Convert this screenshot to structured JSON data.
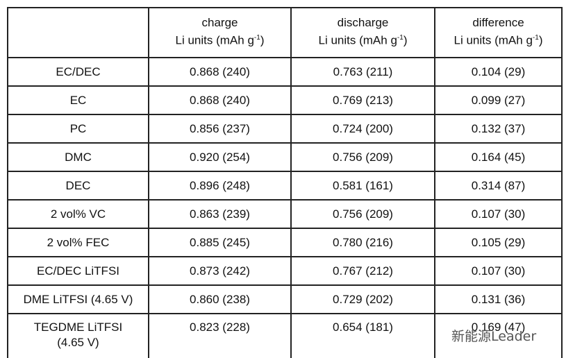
{
  "table": {
    "header": [
      {
        "line1": "charge",
        "line2": "Li units (mAh g",
        "sup": "-1",
        "close": ")"
      },
      {
        "line1": "discharge",
        "line2": "Li units (mAh g",
        "sup": "-1",
        "close": ")"
      },
      {
        "line1": "difference",
        "line2": "Li units (mAh g",
        "sup": "-1",
        "close": ")"
      }
    ],
    "rows": [
      [
        "EC/DEC",
        "0.868 (240)",
        "0.763 (211)",
        "0.104 (29)"
      ],
      [
        "EC",
        "0.868 (240)",
        "0.769 (213)",
        "0.099 (27)"
      ],
      [
        "PC",
        "0.856 (237)",
        "0.724 (200)",
        "0.132 (37)"
      ],
      [
        "DMC",
        "0.920 (254)",
        "0.756 (209)",
        "0.164 (45)"
      ],
      [
        "DEC",
        "0.896 (248)",
        "0.581 (161)",
        "0.314 (87)"
      ],
      [
        "2 vol% VC",
        "0.863 (239)",
        "0.756 (209)",
        "0.107 (30)"
      ],
      [
        "2 vol% FEC",
        "0.885 (245)",
        "0.780 (216)",
        "0.105 (29)"
      ],
      [
        "EC/DEC LiTFSI",
        "0.873 (242)",
        "0.767 (212)",
        "0.107 (30)"
      ],
      [
        "DME LiTFSI (4.65 V)",
        "0.860 (238)",
        "0.729 (202)",
        "0.131 (36)"
      ],
      [
        "TEGDME LiTFSI (4.65 V)",
        "0.823 (228)",
        "0.654 (181)",
        "0.169 (47)"
      ]
    ]
  },
  "watermark": "新能源Leader"
}
